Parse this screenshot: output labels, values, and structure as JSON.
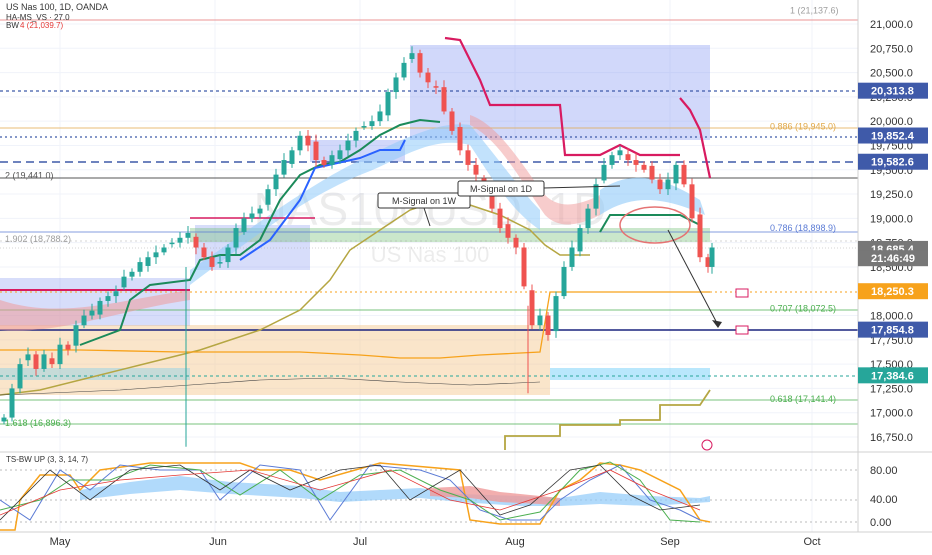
{
  "header": {
    "symbol_line": "US Nas 100, 1D, OANDA",
    "indicator_line": "HA-MS_VS · 27.0",
    "bw_label": "BW",
    "bw_value": "4 (21,039.7)",
    "watermark_symbol": "NAS100USD, 1D",
    "watermark_name": "US Nas 100"
  },
  "colors": {
    "candle_up": "#26a69a",
    "candle_down": "#ef5350",
    "price_tag": "#3f5aa9",
    "orange_line": "#f7a21b",
    "fib_green": "#4caf50",
    "fib_orange": "#e0a84a",
    "tenkan_red": "#d81b60",
    "trail_green": "#1b8a5a",
    "trail_olive": "#b5a642",
    "trail_blue": "#2962ff"
  },
  "axis": {
    "price_ticks": [
      "21,000.0",
      "20,750.0",
      "20,500.0",
      "20,250.0",
      "20,000.0",
      "19,750.0",
      "19,500.0",
      "19,250.0",
      "19,000.0",
      "18,750.0",
      "18,500.0",
      "18,000.0",
      "17,750.0",
      "17,500.0",
      "17,250.0",
      "17,000.0",
      "16,750.0"
    ],
    "time_ticks": [
      "May",
      "Jun",
      "Jul",
      "Aug",
      "Sep",
      "Oct"
    ],
    "osc_ticks": [
      "80.00",
      "40.00",
      "0.00"
    ]
  },
  "price_tags": [
    {
      "label": "20,313.8",
      "price": 20313.8,
      "color": "#3f5aa9"
    },
    {
      "label": "19,852.4",
      "price": 19852.4,
      "color": "#3f5aa9"
    },
    {
      "label": "19,582.6",
      "price": 19582.6,
      "color": "#3f5aa9"
    },
    {
      "label": "18,685.4",
      "price": 18685.4,
      "color": "#777777"
    },
    {
      "label": "21:46:49",
      "price": 18590,
      "color": "#777777"
    },
    {
      "label": "18,250.3",
      "price": 18250.3,
      "color": "#f7a21b"
    },
    {
      "label": "17,854.8",
      "price": 17854.8,
      "color": "#3f5aa9"
    },
    {
      "label": "17,384.6",
      "price": 17384.6,
      "color": "#26a69a"
    }
  ],
  "fib_labels": [
    {
      "text": "1 (21,137.6)",
      "price": 21137.6,
      "color": "#9e9e9e"
    },
    {
      "text": "0.886 (19,945.0)",
      "price": 19945.0,
      "color": "#e0a84a"
    },
    {
      "text": "2 (19,441.0)",
      "price": 19441.0,
      "color": "#555555"
    },
    {
      "text": "1.902 (18,788.2)",
      "price": 18788.2,
      "color": "#9e9e9e"
    },
    {
      "text": "0.786 (18,898.9)",
      "price": 18898.9,
      "color": "#5b7bd5"
    },
    {
      "text": "0.707 (18,072.5)",
      "price": 18072.5,
      "color": "#4caf50"
    },
    {
      "text": "0.618 (17,141.4)",
      "price": 17141.4,
      "color": "#4caf50"
    },
    {
      "text": "1.618 (16,896.3)",
      "price": 16896.3,
      "color": "#4caf50"
    }
  ],
  "annotations": {
    "m_signal_1w": "M-Signal on 1W",
    "m_signal_1d": "M-Signal on 1D"
  },
  "oscillator": {
    "title": "TS-BW UP (3, 3, 14, 7)"
  },
  "chart_data": {
    "type": "candlestick",
    "title": "US Nas 100, 1D, OANDA",
    "ylim": [
      16600,
      21200
    ],
    "osc_ylim": [
      0,
      100
    ],
    "grid": true,
    "series": [
      {
        "name": "US Nas 100",
        "close_path": [
          [
            0,
            16950
          ],
          [
            8,
            17250
          ],
          [
            16,
            17500
          ],
          [
            24,
            17600
          ],
          [
            32,
            17450
          ],
          [
            40,
            17600
          ],
          [
            48,
            17500
          ],
          [
            56,
            17700
          ],
          [
            64,
            17650
          ],
          [
            72,
            17900
          ],
          [
            80,
            18000
          ],
          [
            88,
            18050
          ],
          [
            96,
            18150
          ],
          [
            104,
            18200
          ],
          [
            112,
            18250
          ],
          [
            120,
            18400
          ],
          [
            128,
            18450
          ],
          [
            136,
            18550
          ],
          [
            144,
            18600
          ],
          [
            152,
            18650
          ],
          [
            160,
            18700
          ],
          [
            168,
            18750
          ],
          [
            176,
            18800
          ],
          [
            184,
            18850
          ],
          [
            192,
            18700
          ],
          [
            200,
            18600
          ],
          [
            208,
            18500
          ],
          [
            216,
            18550
          ],
          [
            224,
            18700
          ],
          [
            232,
            18900
          ],
          [
            240,
            19000
          ],
          [
            248,
            19050
          ],
          [
            256,
            19100
          ],
          [
            264,
            19300
          ],
          [
            272,
            19450
          ],
          [
            280,
            19600
          ],
          [
            288,
            19700
          ],
          [
            296,
            19850
          ],
          [
            304,
            19750
          ],
          [
            312,
            19600
          ],
          [
            320,
            19550
          ],
          [
            328,
            19650
          ],
          [
            336,
            19700
          ],
          [
            344,
            19800
          ],
          [
            352,
            19900
          ],
          [
            360,
            19950
          ],
          [
            368,
            20000
          ],
          [
            376,
            20100
          ],
          [
            384,
            20300
          ],
          [
            392,
            20450
          ],
          [
            400,
            20600
          ],
          [
            408,
            20700
          ],
          [
            416,
            20500
          ],
          [
            424,
            20400
          ],
          [
            432,
            20350
          ],
          [
            440,
            20100
          ],
          [
            448,
            19900
          ],
          [
            456,
            19700
          ],
          [
            464,
            19550
          ],
          [
            472,
            19450
          ],
          [
            480,
            19300
          ],
          [
            488,
            19100
          ],
          [
            496,
            18900
          ],
          [
            504,
            18800
          ],
          [
            512,
            18700
          ],
          [
            520,
            18300
          ],
          [
            528,
            17900
          ],
          [
            536,
            18000
          ],
          [
            544,
            17800
          ],
          [
            552,
            18200
          ],
          [
            560,
            18500
          ],
          [
            568,
            18700
          ],
          [
            576,
            18900
          ],
          [
            584,
            19100
          ],
          [
            592,
            19350
          ],
          [
            600,
            19550
          ],
          [
            608,
            19650
          ],
          [
            616,
            19700
          ],
          [
            624,
            19600
          ],
          [
            632,
            19550
          ],
          [
            640,
            19500
          ],
          [
            648,
            19400
          ],
          [
            656,
            19300
          ],
          [
            664,
            19400
          ],
          [
            672,
            19550
          ],
          [
            680,
            19350
          ],
          [
            688,
            19000
          ],
          [
            696,
            18600
          ],
          [
            704,
            18500
          ],
          [
            708,
            18700
          ]
        ]
      }
    ],
    "levels": [
      {
        "name": "20,313.8",
        "value": 20313.8
      },
      {
        "name": "19,852.4",
        "value": 19852.4
      },
      {
        "name": "19,582.6",
        "value": 19582.6
      },
      {
        "name": "18,685.4",
        "value": 18685.4
      },
      {
        "name": "18,250.3",
        "value": 18250.3
      },
      {
        "name": "17,854.8",
        "value": 17854.8
      },
      {
        "name": "17,384.6",
        "value": 17384.6
      }
    ]
  }
}
